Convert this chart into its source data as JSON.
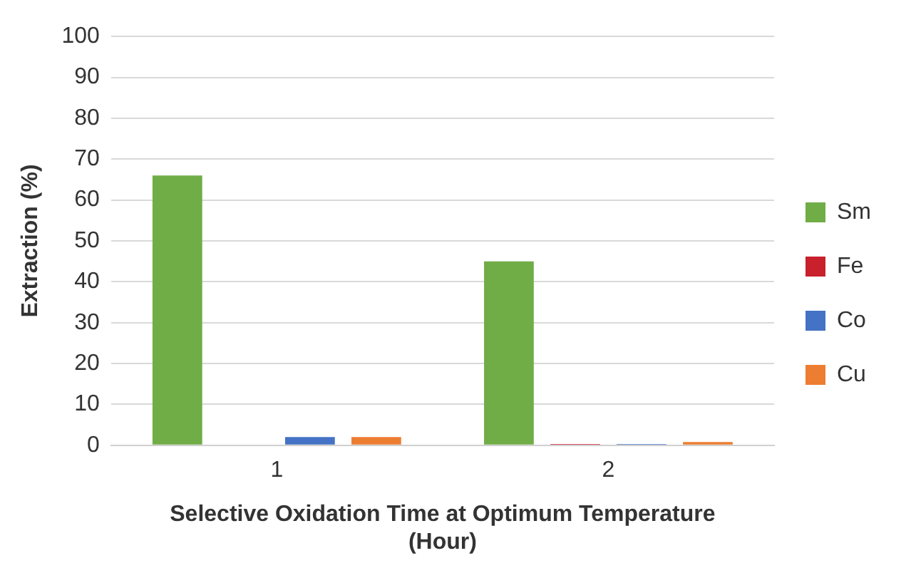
{
  "chart_data": {
    "type": "bar",
    "categories": [
      "1",
      "2"
    ],
    "series": [
      {
        "name": "Sm",
        "color": "#70ad47",
        "values": [
          66,
          45
        ]
      },
      {
        "name": "Fe",
        "color": "#c8202c",
        "values": [
          0,
          0.3
        ]
      },
      {
        "name": "Co",
        "color": "#4472c4",
        "values": [
          2,
          0.3
        ]
      },
      {
        "name": "Cu",
        "color": "#ed7d31",
        "values": [
          2,
          0.8
        ]
      }
    ],
    "xlabel": "Selective Oxidation Time at Optimum Temperature\n(Hour)",
    "ylabel": "Extraction (%)",
    "ylim": [
      0,
      100
    ],
    "yticks": [
      0,
      10,
      20,
      30,
      40,
      50,
      60,
      70,
      80,
      90,
      100
    ],
    "grid": "y",
    "legend": "right"
  }
}
